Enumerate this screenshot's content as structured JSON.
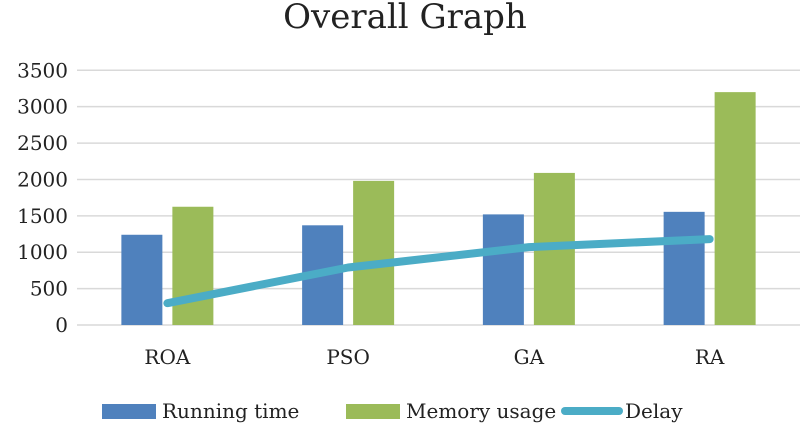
{
  "chart_data": {
    "type": "bar",
    "title": "Overall Graph",
    "xlabel": "",
    "ylabel": "",
    "categories": [
      "ROA",
      "PSO",
      "GA",
      "RA"
    ],
    "ylim": [
      0,
      3500
    ],
    "yticks": [
      0,
      500,
      1000,
      1500,
      2000,
      2500,
      3000,
      3500
    ],
    "grid": true,
    "legend_position": "bottom",
    "series": [
      {
        "name": "Running time",
        "type": "bar",
        "color": "#4f81bd",
        "values": [
          1240,
          1370,
          1520,
          1555
        ]
      },
      {
        "name": "Memory usage",
        "type": "bar",
        "color": "#9bbb59",
        "values": [
          1625,
          1980,
          2090,
          3200
        ]
      },
      {
        "name": "Delay",
        "type": "line",
        "color": "#4bacc6",
        "values": [
          300,
          790,
          1070,
          1180
        ]
      }
    ]
  }
}
